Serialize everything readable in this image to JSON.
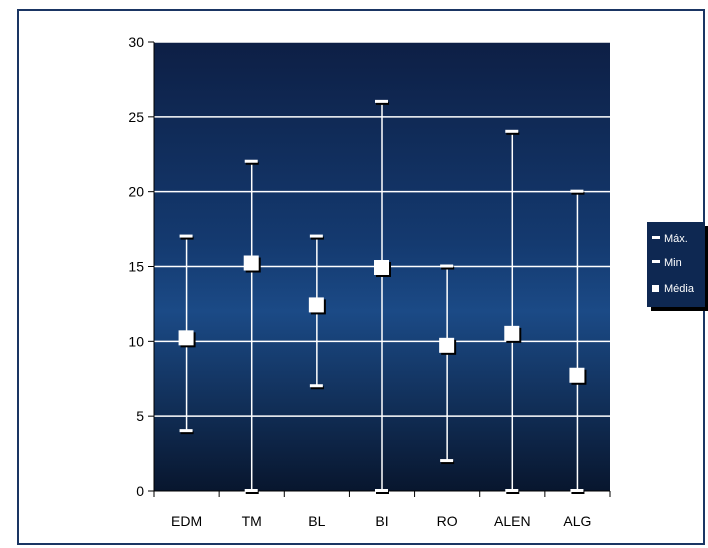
{
  "chart_data": {
    "type": "high-low-mean",
    "categories": [
      "EDM",
      "TM",
      "BL",
      "BI",
      "RO",
      "ALEN",
      "ALG"
    ],
    "series": [
      {
        "name": "Máx.",
        "values": [
          17,
          22,
          17,
          26,
          15,
          24,
          20
        ]
      },
      {
        "name": "Min",
        "values": [
          4,
          0,
          7,
          0,
          2,
          0,
          0
        ]
      },
      {
        "name": "Média",
        "values": [
          10.2,
          15.2,
          12.4,
          14.9,
          9.7,
          10.5,
          7.7
        ]
      }
    ],
    "y_ticks": [
      "0",
      "5",
      "10",
      "15",
      "20",
      "25",
      "30"
    ],
    "ylim": [
      0,
      30
    ],
    "grid": true,
    "legend_position": "right",
    "colors": {
      "plot_top": "#0d1f45",
      "plot_bottom": "#08162e",
      "plot_mid": "#1b4a86",
      "marks": "#ffffff",
      "frame": "#1a3563"
    }
  }
}
